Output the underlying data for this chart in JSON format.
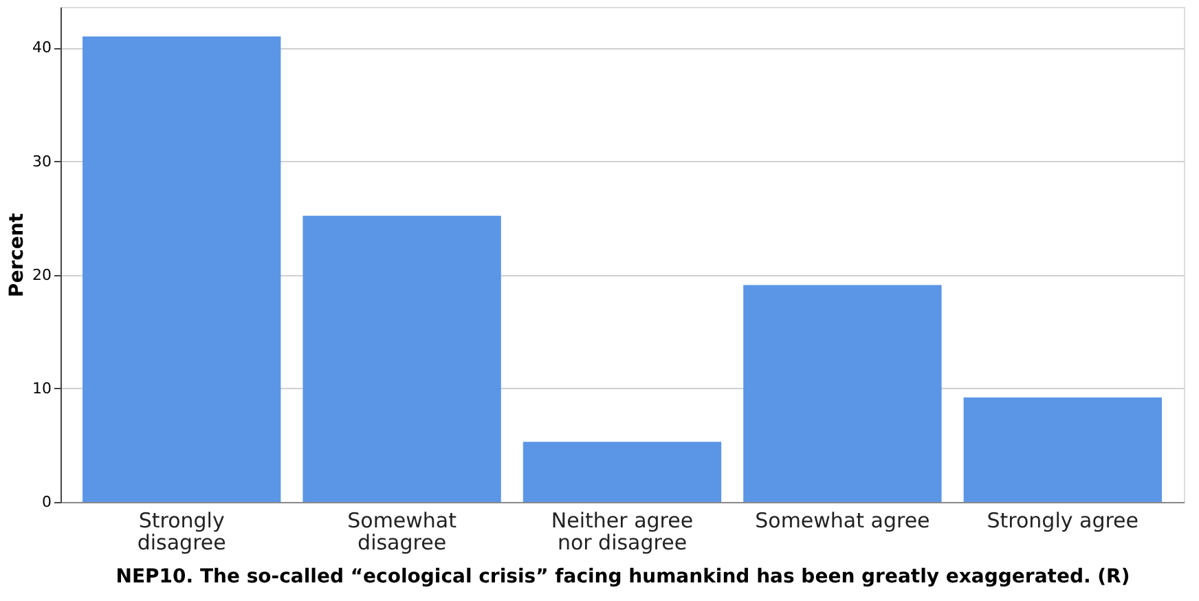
{
  "chart_data": {
    "type": "bar",
    "xlabel": "NEP10. The so-called “ecological crisis” facing humankind has been greatly exaggerated. (R)",
    "ylabel": "Percent",
    "categories": [
      "Strongly\ndisagree",
      "Somewhat\ndisagree",
      "Neither agree\nnor disagree",
      "Somewhat agree",
      "Strongly agree"
    ],
    "values": [
      41.0,
      25.2,
      5.3,
      19.1,
      9.2
    ],
    "color": "#5b96e6",
    "ylim": [
      0,
      43.6
    ],
    "yticks": [
      0,
      10,
      20,
      30,
      40
    ],
    "grid": "y"
  }
}
